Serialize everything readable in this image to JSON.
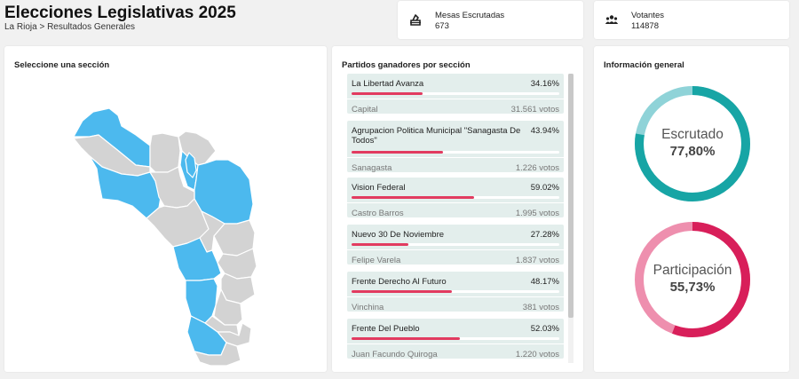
{
  "header": {
    "title": "Elecciones Legislativas 2025",
    "breadcrumb": "La Rioja > Resultados Generales"
  },
  "stats": {
    "mesas": {
      "label": "Mesas Escrutadas",
      "value": "673",
      "icon": "ballot-box-icon"
    },
    "votantes": {
      "label": "Votantes",
      "value": "114878",
      "icon": "people-icon"
    }
  },
  "map": {
    "title": "Seleccione una sección",
    "colors": {
      "highlight": "#4cb9ee",
      "base": "#d3d3d3",
      "border": "#ffffff"
    }
  },
  "parties": {
    "title": "Partidos ganadores por sección",
    "bar_color": "#e23b60",
    "items": [
      {
        "party": "La Libertad Avanza",
        "pct": "34.16%",
        "share": 0.3416,
        "section": "Capital",
        "votes": "31.561 votos"
      },
      {
        "party": "Agrupacion Politica Municipal \"Sanagasta De Todos\"",
        "pct": "43.94%",
        "share": 0.4394,
        "section": "Sanagasta",
        "votes": "1.226 votos"
      },
      {
        "party": "Vision Federal",
        "pct": "59.02%",
        "share": 0.5902,
        "section": "Castro Barros",
        "votes": "1.995 votos"
      },
      {
        "party": "Nuevo 30 De Noviembre",
        "pct": "27.28%",
        "share": 0.2728,
        "section": "Felipe Varela",
        "votes": "1.837 votos"
      },
      {
        "party": "Frente Derecho Al Futuro",
        "pct": "48.17%",
        "share": 0.4817,
        "section": "Vinchina",
        "votes": "381 votos"
      },
      {
        "party": "Frente Del Pueblo",
        "pct": "52.03%",
        "share": 0.5203,
        "section": "Juan Facundo Quiroga",
        "votes": "1.220 votos"
      }
    ]
  },
  "info": {
    "title": "Información general",
    "escrutado": {
      "label": "Escrutado",
      "value": "77,80%",
      "fraction": 0.778,
      "color": "#17a5a5",
      "track": "#8fd3d8"
    },
    "participacion": {
      "label": "Participación",
      "value": "55,73%",
      "fraction": 0.5573,
      "color": "#d81f5a",
      "track": "#ee8fae"
    }
  }
}
